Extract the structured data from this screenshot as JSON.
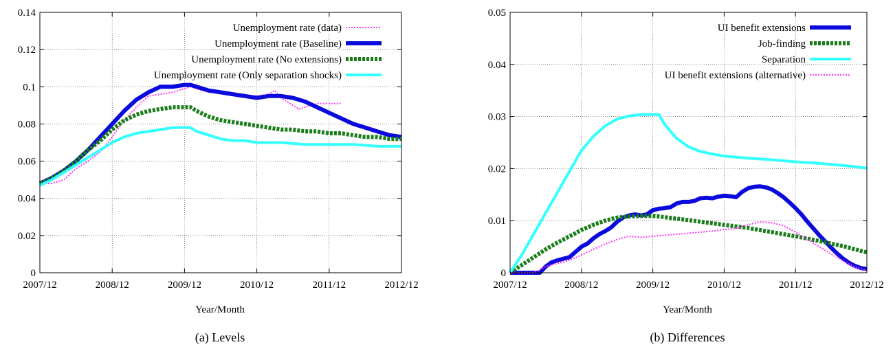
{
  "chart_data": [
    {
      "type": "line",
      "caption": "(a)  Levels",
      "xlabel": "Year/Month",
      "ylabel": "",
      "x_ticks": [
        "2007/12",
        "2008/12",
        "2009/12",
        "2010/12",
        "2011/12",
        "2012/12"
      ],
      "y_ticks": [
        "0",
        "0.02",
        "0.04",
        "0.06",
        "0.08",
        "0.1",
        "0.12",
        "0.14"
      ],
      "xlim": [
        0,
        60
      ],
      "ylim": [
        0,
        0.14
      ],
      "grid": true,
      "legend_position": "top-right",
      "series": [
        {
          "name": "Unemployment rate (data)",
          "color": "#ff33ff",
          "style": "dotted",
          "width": 2,
          "points": [
            [
              0,
              0.048
            ],
            [
              2,
              0.048
            ],
            [
              4,
              0.05
            ],
            [
              6,
              0.056
            ],
            [
              8,
              0.06
            ],
            [
              10,
              0.065
            ],
            [
              12,
              0.073
            ],
            [
              14,
              0.082
            ],
            [
              16,
              0.089
            ],
            [
              18,
              0.095
            ],
            [
              20,
              0.096
            ],
            [
              22,
              0.097
            ],
            [
              24,
              0.099
            ],
            [
              25,
              0.1
            ],
            [
              26,
              0.099
            ],
            [
              28,
              0.097
            ],
            [
              30,
              0.097
            ],
            [
              32,
              0.096
            ],
            [
              34,
              0.095
            ],
            [
              36,
              0.095
            ],
            [
              38,
              0.096
            ],
            [
              39,
              0.098
            ],
            [
              40,
              0.094
            ],
            [
              42,
              0.09
            ],
            [
              43,
              0.088
            ],
            [
              44,
              0.089
            ],
            [
              46,
              0.091
            ],
            [
              48,
              0.091
            ],
            [
              50,
              0.091
            ]
          ]
        },
        {
          "name": "Unemployment rate (Baseline)",
          "color": "#0a0add",
          "style": "solid",
          "width": 6,
          "points": [
            [
              0,
              0.048
            ],
            [
              2,
              0.051
            ],
            [
              4,
              0.055
            ],
            [
              6,
              0.06
            ],
            [
              8,
              0.066
            ],
            [
              10,
              0.073
            ],
            [
              12,
              0.08
            ],
            [
              14,
              0.087
            ],
            [
              16,
              0.093
            ],
            [
              18,
              0.097
            ],
            [
              20,
              0.1
            ],
            [
              22,
              0.1
            ],
            [
              24,
              0.101
            ],
            [
              25,
              0.101
            ],
            [
              26,
              0.1
            ],
            [
              28,
              0.098
            ],
            [
              30,
              0.097
            ],
            [
              32,
              0.096
            ],
            [
              34,
              0.095
            ],
            [
              36,
              0.094
            ],
            [
              38,
              0.095
            ],
            [
              40,
              0.095
            ],
            [
              42,
              0.094
            ],
            [
              44,
              0.092
            ],
            [
              46,
              0.089
            ],
            [
              48,
              0.086
            ],
            [
              50,
              0.083
            ],
            [
              52,
              0.08
            ],
            [
              54,
              0.078
            ],
            [
              56,
              0.076
            ],
            [
              58,
              0.074
            ],
            [
              60,
              0.073
            ]
          ]
        },
        {
          "name": "Unemployment rate (No extensions)",
          "color": "#1b7d1b",
          "style": "dashed",
          "width": 6,
          "points": [
            [
              0,
              0.048
            ],
            [
              2,
              0.051
            ],
            [
              4,
              0.055
            ],
            [
              6,
              0.06
            ],
            [
              8,
              0.066
            ],
            [
              10,
              0.071
            ],
            [
              12,
              0.077
            ],
            [
              14,
              0.082
            ],
            [
              16,
              0.085
            ],
            [
              18,
              0.087
            ],
            [
              20,
              0.088
            ],
            [
              22,
              0.089
            ],
            [
              24,
              0.089
            ],
            [
              25,
              0.089
            ],
            [
              26,
              0.087
            ],
            [
              28,
              0.084
            ],
            [
              30,
              0.082
            ],
            [
              32,
              0.081
            ],
            [
              34,
              0.08
            ],
            [
              36,
              0.079
            ],
            [
              38,
              0.078
            ],
            [
              40,
              0.077
            ],
            [
              42,
              0.077
            ],
            [
              44,
              0.076
            ],
            [
              46,
              0.076
            ],
            [
              48,
              0.075
            ],
            [
              50,
              0.075
            ],
            [
              52,
              0.074
            ],
            [
              54,
              0.073
            ],
            [
              56,
              0.073
            ],
            [
              58,
              0.072
            ],
            [
              60,
              0.072
            ]
          ]
        },
        {
          "name": "Unemployment rate (Only separation shocks)",
          "color": "#33ffff",
          "style": "solid",
          "width": 4,
          "points": [
            [
              0,
              0.047
            ],
            [
              2,
              0.05
            ],
            [
              4,
              0.054
            ],
            [
              6,
              0.058
            ],
            [
              8,
              0.062
            ],
            [
              10,
              0.066
            ],
            [
              12,
              0.07
            ],
            [
              14,
              0.073
            ],
            [
              16,
              0.075
            ],
            [
              18,
              0.076
            ],
            [
              20,
              0.077
            ],
            [
              22,
              0.078
            ],
            [
              24,
              0.078
            ],
            [
              25,
              0.078
            ],
            [
              26,
              0.076
            ],
            [
              28,
              0.074
            ],
            [
              30,
              0.072
            ],
            [
              32,
              0.071
            ],
            [
              34,
              0.071
            ],
            [
              36,
              0.07
            ],
            [
              40,
              0.07
            ],
            [
              44,
              0.069
            ],
            [
              48,
              0.069
            ],
            [
              52,
              0.069
            ],
            [
              56,
              0.068
            ],
            [
              60,
              0.068
            ]
          ]
        }
      ]
    },
    {
      "type": "line",
      "caption": "(b)  Differences",
      "xlabel": "Year/Month",
      "ylabel": "",
      "x_ticks": [
        "2007/12",
        "2008/12",
        "2009/12",
        "2010/12",
        "2011/12",
        "2012/12"
      ],
      "y_ticks": [
        "0",
        "0.01",
        "0.02",
        "0.03",
        "0.04",
        "0.05"
      ],
      "xlim": [
        0,
        60
      ],
      "ylim": [
        0,
        0.05
      ],
      "grid": true,
      "legend_position": "top-right",
      "series": [
        {
          "name": "UI benefit extensions",
          "color": "#0a0add",
          "style": "solid",
          "width": 6,
          "points": [
            [
              0,
              0
            ],
            [
              2,
              0
            ],
            [
              4,
              0
            ],
            [
              5,
              0
            ],
            [
              6,
              0.0012
            ],
            [
              7,
              0.002
            ],
            [
              8,
              0.0024
            ],
            [
              9,
              0.0027
            ],
            [
              10,
              0.003
            ],
            [
              11,
              0.004
            ],
            [
              12,
              0.005
            ],
            [
              13,
              0.0056
            ],
            [
              14,
              0.0066
            ],
            [
              15,
              0.0074
            ],
            [
              16,
              0.008
            ],
            [
              17,
              0.0087
            ],
            [
              18,
              0.0098
            ],
            [
              19,
              0.0106
            ],
            [
              20,
              0.011
            ],
            [
              21,
              0.0112
            ],
            [
              22,
              0.011
            ],
            [
              23,
              0.0112
            ],
            [
              24,
              0.012
            ],
            [
              25,
              0.0123
            ],
            [
              26,
              0.0124
            ],
            [
              27,
              0.0126
            ],
            [
              28,
              0.0133
            ],
            [
              29,
              0.0136
            ],
            [
              30,
              0.0136
            ],
            [
              31,
              0.0138
            ],
            [
              32,
              0.0143
            ],
            [
              33,
              0.0144
            ],
            [
              34,
              0.0143
            ],
            [
              35,
              0.0146
            ],
            [
              36,
              0.0148
            ],
            [
              37,
              0.0147
            ],
            [
              38,
              0.0145
            ],
            [
              39,
              0.0155
            ],
            [
              40,
              0.0162
            ],
            [
              41,
              0.0165
            ],
            [
              42,
              0.0166
            ],
            [
              43,
              0.0164
            ],
            [
              44,
              0.016
            ],
            [
              45,
              0.0153
            ],
            [
              46,
              0.0145
            ],
            [
              47,
              0.0135
            ],
            [
              48,
              0.0124
            ],
            [
              49,
              0.0112
            ],
            [
              50,
              0.0098
            ],
            [
              51,
              0.0085
            ],
            [
              52,
              0.0072
            ],
            [
              53,
              0.006
            ],
            [
              54,
              0.0048
            ],
            [
              55,
              0.0037
            ],
            [
              56,
              0.0027
            ],
            [
              57,
              0.0019
            ],
            [
              58,
              0.0013
            ],
            [
              59,
              0.0009
            ],
            [
              60,
              0.0007
            ]
          ]
        },
        {
          "name": "Job-finding",
          "color": "#1b7d1b",
          "style": "dashed",
          "width": 6,
          "points": [
            [
              0,
              0
            ],
            [
              2,
              0.0015
            ],
            [
              4,
              0.003
            ],
            [
              6,
              0.0045
            ],
            [
              8,
              0.0058
            ],
            [
              10,
              0.007
            ],
            [
              12,
              0.0082
            ],
            [
              14,
              0.0092
            ],
            [
              16,
              0.01
            ],
            [
              18,
              0.0106
            ],
            [
              20,
              0.0108
            ],
            [
              22,
              0.0109
            ],
            [
              24,
              0.0109
            ],
            [
              25,
              0.0108
            ],
            [
              28,
              0.0104
            ],
            [
              32,
              0.0098
            ],
            [
              36,
              0.0092
            ],
            [
              40,
              0.0086
            ],
            [
              44,
              0.0078
            ],
            [
              48,
              0.007
            ],
            [
              52,
              0.0061
            ],
            [
              56,
              0.0051
            ],
            [
              60,
              0.0039
            ]
          ]
        },
        {
          "name": "Separation",
          "color": "#33ffff",
          "style": "solid",
          "width": 4,
          "points": [
            [
              0,
              0
            ],
            [
              2,
              0.0035
            ],
            [
              4,
              0.0075
            ],
            [
              6,
              0.0115
            ],
            [
              8,
              0.0155
            ],
            [
              10,
              0.0195
            ],
            [
              12,
              0.0235
            ],
            [
              14,
              0.0262
            ],
            [
              16,
              0.0282
            ],
            [
              18,
              0.0295
            ],
            [
              20,
              0.0301
            ],
            [
              22,
              0.0304
            ],
            [
              24,
              0.0304
            ],
            [
              25,
              0.0304
            ],
            [
              26,
              0.0285
            ],
            [
              28,
              0.0258
            ],
            [
              30,
              0.0242
            ],
            [
              32,
              0.0233
            ],
            [
              34,
              0.0228
            ],
            [
              36,
              0.0224
            ],
            [
              40,
              0.022
            ],
            [
              44,
              0.0217
            ],
            [
              48,
              0.0213
            ],
            [
              52,
              0.021
            ],
            [
              56,
              0.0206
            ],
            [
              60,
              0.0201
            ]
          ]
        },
        {
          "name": "UI benefit extensions (alternative)",
          "color": "#ff33ff",
          "style": "dotted",
          "width": 2,
          "points": [
            [
              0,
              0
            ],
            [
              4,
              0
            ],
            [
              6,
              0.0012
            ],
            [
              8,
              0.0018
            ],
            [
              10,
              0.0024
            ],
            [
              12,
              0.0034
            ],
            [
              14,
              0.0045
            ],
            [
              16,
              0.0055
            ],
            [
              18,
              0.0064
            ],
            [
              20,
              0.007
            ],
            [
              22,
              0.0068
            ],
            [
              24,
              0.007
            ],
            [
              26,
              0.0072
            ],
            [
              28,
              0.0074
            ],
            [
              30,
              0.0076
            ],
            [
              32,
              0.0078
            ],
            [
              34,
              0.008
            ],
            [
              36,
              0.0083
            ],
            [
              38,
              0.0085
            ],
            [
              40,
              0.0092
            ],
            [
              42,
              0.0098
            ],
            [
              44,
              0.0096
            ],
            [
              46,
              0.009
            ],
            [
              48,
              0.0078
            ],
            [
              50,
              0.0064
            ],
            [
              52,
              0.005
            ],
            [
              54,
              0.0036
            ],
            [
              56,
              0.0023
            ],
            [
              58,
              0.0011
            ],
            [
              60,
              0.0004
            ]
          ]
        }
      ]
    }
  ]
}
